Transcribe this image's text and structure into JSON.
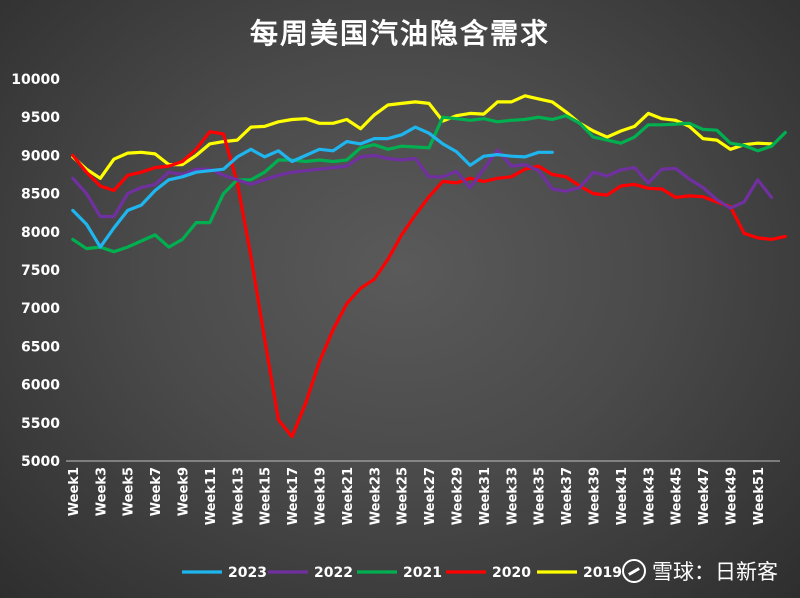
{
  "chart_data": {
    "type": "line",
    "title": "每周美国汽油隐含需求",
    "xlabel": "",
    "ylabel": "",
    "ylim": [
      5000,
      10000
    ],
    "yticks": [
      5000,
      5500,
      6000,
      6500,
      7000,
      7500,
      8000,
      8500,
      9000,
      9500,
      10000
    ],
    "xlim": [
      1,
      53
    ],
    "xtick_labels": [
      "Week1",
      "Week3",
      "Week5",
      "Week7",
      "Week9",
      "Week11",
      "Week13",
      "Week15",
      "Week17",
      "Week19",
      "Week21",
      "Week23",
      "Week25",
      "Week27",
      "Week29",
      "Week31",
      "Week33",
      "Week35",
      "Week37",
      "Week39",
      "Week41",
      "Week43",
      "Week45",
      "Week47",
      "Week49",
      "Week51"
    ],
    "grid": false,
    "legend_position": "bottom",
    "series": [
      {
        "name": "2023",
        "color": "#1fb5ee",
        "values": [
          8280,
          8100,
          7800,
          8050,
          8280,
          8350,
          8540,
          8680,
          8720,
          8780,
          8800,
          8820,
          8980,
          9080,
          8980,
          9060,
          8920,
          9000,
          9080,
          9060,
          9180,
          9150,
          9220,
          9220,
          9270,
          9370,
          9290,
          9150,
          9050,
          8870,
          8990,
          9010,
          8990,
          8980,
          9040,
          9040
        ]
      },
      {
        "name": "2022",
        "color": "#7030a0",
        "values": [
          8700,
          8500,
          8200,
          8200,
          8500,
          8580,
          8620,
          8780,
          8750,
          8820,
          8820,
          8740,
          8680,
          8620,
          8680,
          8740,
          8780,
          8800,
          8820,
          8840,
          8860,
          8980,
          9000,
          8960,
          8940,
          8960,
          8720,
          8720,
          8790,
          8580,
          8820,
          9070,
          8860,
          8880,
          8800,
          8560,
          8530,
          8580,
          8780,
          8730,
          8810,
          8840,
          8640,
          8820,
          8830,
          8690,
          8580,
          8420,
          8310,
          8390,
          8680,
          8450
        ]
      },
      {
        "name": "2021",
        "color": "#00b050",
        "values": [
          7900,
          7780,
          7800,
          7740,
          7800,
          7880,
          7960,
          7800,
          7900,
          8120,
          8120,
          8500,
          8680,
          8680,
          8780,
          8940,
          8940,
          8920,
          8940,
          8920,
          8940,
          9100,
          9140,
          9080,
          9120,
          9110,
          9100,
          9500,
          9480,
          9460,
          9480,
          9440,
          9460,
          9470,
          9500,
          9470,
          9520,
          9420,
          9240,
          9200,
          9160,
          9240,
          9400,
          9400,
          9410,
          9420,
          9340,
          9330,
          9160,
          9130,
          9060,
          9120,
          9300
        ]
      },
      {
        "name": "2020",
        "color": "#ff0000",
        "values": [
          9000,
          8780,
          8600,
          8540,
          8740,
          8780,
          8840,
          8860,
          8920,
          9080,
          9310,
          9280,
          8640,
          7680,
          6600,
          5540,
          5320,
          5760,
          6300,
          6720,
          7060,
          7260,
          7380,
          7640,
          7960,
          8220,
          8460,
          8660,
          8640,
          8700,
          8660,
          8700,
          8720,
          8820,
          8860,
          8750,
          8720,
          8600,
          8500,
          8480,
          8600,
          8620,
          8570,
          8560,
          8450,
          8470,
          8460,
          8390,
          8330,
          7980,
          7920,
          7900,
          7940
        ]
      },
      {
        "name": "2019",
        "color": "#ffff00",
        "values": [
          8980,
          8820,
          8700,
          8950,
          9030,
          9040,
          9020,
          8880,
          8880,
          9000,
          9150,
          9180,
          9200,
          9370,
          9380,
          9440,
          9470,
          9480,
          9420,
          9420,
          9470,
          9350,
          9530,
          9660,
          9680,
          9700,
          9680,
          9450,
          9520,
          9550,
          9540,
          9700,
          9700,
          9780,
          9740,
          9700,
          9570,
          9420,
          9320,
          9240,
          9320,
          9380,
          9550,
          9480,
          9460,
          9380,
          9220,
          9200,
          9080,
          9140,
          9160,
          9150
        ]
      }
    ]
  },
  "watermark": {
    "logo_icon": "snowball-logo-icon",
    "text": "雪球：日新客"
  }
}
